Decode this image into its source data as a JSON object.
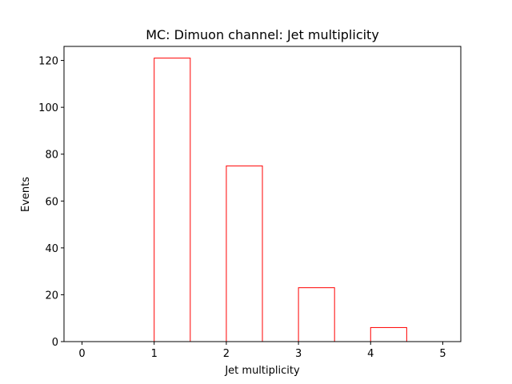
{
  "chart_data": {
    "type": "bar",
    "style": "histogram-step",
    "title": "MC: Dimuon channel: Jet multiplicity",
    "xlabel": "Jet multiplicity",
    "ylabel": "Events",
    "xlim": [
      -0.25,
      5.25
    ],
    "ylim": [
      0,
      126
    ],
    "xticks": [
      0,
      1,
      2,
      3,
      4,
      5
    ],
    "yticks": [
      0,
      20,
      40,
      60,
      80,
      100,
      120
    ],
    "bin_edges": [
      0,
      0.5,
      1,
      1.5,
      2,
      2.5,
      3,
      3.5,
      4,
      4.5,
      5
    ],
    "values": [
      0,
      0,
      121,
      0,
      75,
      0,
      23,
      0,
      6,
      0
    ],
    "color": "#ff0000",
    "grid": false,
    "legend": "none"
  }
}
